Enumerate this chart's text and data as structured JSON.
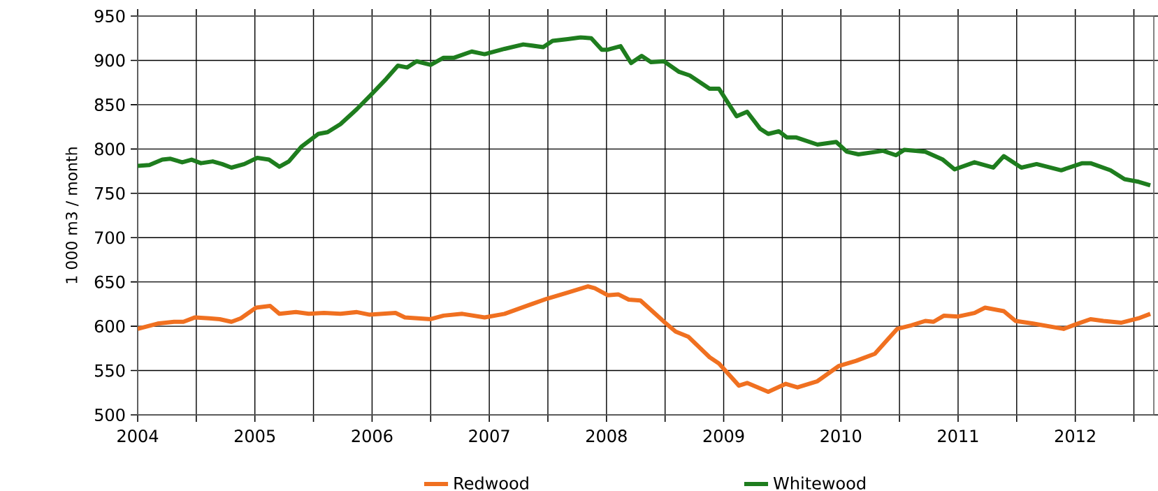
{
  "chart_data": {
    "type": "line",
    "ylabel": "1 000 m3 / month",
    "xlim": [
      2004,
      2012.67
    ],
    "ylim": [
      500,
      950
    ],
    "xticks": [
      2004,
      {
        "value": 2004.5,
        "label": null
      },
      2005,
      {
        "value": 2005.5,
        "label": null
      },
      2006,
      {
        "value": 2006.5,
        "label": null
      },
      2007,
      {
        "value": 2007.5,
        "label": null
      },
      2008,
      {
        "value": 2008.5,
        "label": null
      },
      2009,
      {
        "value": 2009.5,
        "label": null
      },
      2010,
      {
        "value": 2010.5,
        "label": null
      },
      2011,
      {
        "value": 2011.5,
        "label": null
      },
      2012,
      {
        "value": 2012.5,
        "label": null
      }
    ],
    "yticks": [
      500,
      550,
      600,
      650,
      700,
      750,
      800,
      850,
      900,
      950
    ],
    "grid": true,
    "legend": "bottom",
    "marker": "none",
    "line_style": "solid",
    "series": [
      {
        "name": "Redwood",
        "color": "#f07020",
        "x": [
          2004.0,
          2004.17,
          2004.31,
          2004.39,
          2004.49,
          2004.61,
          2004.7,
          2004.8,
          2004.88,
          2005.01,
          2005.13,
          2005.21,
          2005.35,
          2005.46,
          2005.59,
          2005.73,
          2005.87,
          2005.98,
          2006.09,
          2006.2,
          2006.28,
          2006.5,
          2006.61,
          2006.77,
          2006.96,
          2007.13,
          2007.32,
          2007.49,
          2007.67,
          2007.84,
          2007.9,
          2008.01,
          2008.1,
          2008.19,
          2008.29,
          2008.5,
          2008.59,
          2008.7,
          2008.88,
          2008.96,
          2009.13,
          2009.2,
          2009.38,
          2009.53,
          2009.63,
          2009.8,
          2009.98,
          2010.13,
          2010.29,
          2010.48,
          2010.6,
          2010.72,
          2010.79,
          2010.88,
          2011.0,
          2011.14,
          2011.23,
          2011.39,
          2011.49,
          2011.64,
          2011.9,
          2012.0,
          2012.13,
          2012.24,
          2012.39,
          2012.54,
          2012.64
        ],
        "values": [
          597,
          603,
          605,
          605,
          610,
          609,
          608,
          605,
          609,
          621,
          623,
          614,
          616,
          614,
          615,
          614,
          616,
          613,
          614,
          615,
          610,
          608,
          612,
          614,
          610,
          614,
          623,
          631,
          638,
          645,
          643,
          635,
          636,
          630,
          629,
          604,
          594,
          588,
          565,
          558,
          533,
          536,
          526,
          535,
          531,
          538,
          555,
          561,
          569,
          597,
          601,
          606,
          605,
          612,
          611,
          615,
          621,
          617,
          606,
          603,
          597,
          602,
          608,
          606,
          604,
          609,
          614
        ]
      },
      {
        "name": "Whitewood",
        "color": "#1e7d1e",
        "x": [
          2004.0,
          2004.1,
          2004.21,
          2004.28,
          2004.38,
          2004.46,
          2004.54,
          2004.64,
          2004.72,
          2004.8,
          2004.91,
          2005.02,
          2005.12,
          2005.21,
          2005.29,
          2005.4,
          2005.54,
          2005.62,
          2005.73,
          2005.87,
          2005.99,
          2006.12,
          2006.22,
          2006.3,
          2006.38,
          2006.5,
          2006.61,
          2006.7,
          2006.85,
          2006.96,
          2007.13,
          2007.29,
          2007.46,
          2007.54,
          2007.67,
          2007.78,
          2007.87,
          2007.96,
          2008.01,
          2008.12,
          2008.21,
          2008.3,
          2008.38,
          2008.49,
          2008.62,
          2008.71,
          2008.88,
          2008.96,
          2009.11,
          2009.2,
          2009.31,
          2009.38,
          2009.47,
          2009.54,
          2009.62,
          2009.8,
          2009.96,
          2010.05,
          2010.15,
          2010.36,
          2010.47,
          2010.54,
          2010.72,
          2010.87,
          2010.97,
          2011.14,
          2011.3,
          2011.39,
          2011.54,
          2011.67,
          2011.88,
          2012.06,
          2012.13,
          2012.3,
          2012.42,
          2012.54,
          2012.64
        ],
        "values": [
          781,
          782,
          788,
          789,
          785,
          788,
          784,
          786,
          783,
          779,
          783,
          790,
          788,
          780,
          786,
          803,
          817,
          819,
          828,
          845,
          861,
          879,
          894,
          892,
          899,
          895,
          903,
          903,
          910,
          907,
          913,
          918,
          915,
          922,
          924,
          926,
          925,
          912,
          912,
          916,
          897,
          905,
          898,
          899,
          887,
          883,
          868,
          868,
          837,
          842,
          823,
          817,
          820,
          813,
          813,
          805,
          808,
          797,
          794,
          798,
          793,
          799,
          797,
          788,
          777,
          785,
          779,
          792,
          779,
          783,
          776,
          784,
          784,
          776,
          766,
          763,
          759
        ]
      }
    ]
  }
}
